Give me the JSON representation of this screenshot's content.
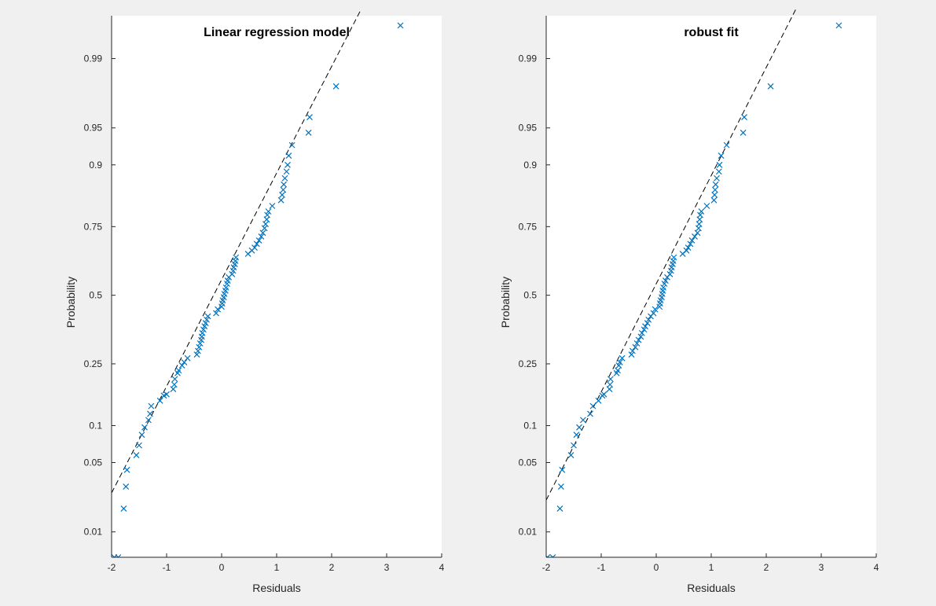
{
  "chart_data": [
    {
      "type": "scatter",
      "subtype": "normal-probability-plot",
      "title": "Linear regression model",
      "xlabel": "Residuals",
      "ylabel": "Probability",
      "xlim": [
        -2,
        4
      ],
      "xticks": [
        -2,
        -1,
        0,
        1,
        2,
        3,
        4
      ],
      "yticks": [
        0.01,
        0.05,
        0.1,
        0.25,
        0.5,
        0.75,
        0.9,
        0.95,
        0.99
      ],
      "grid": false,
      "marker_color": "#0072bd",
      "reference_line": {
        "style": "dashed",
        "color": "#000000",
        "points": [
          [
            -2,
            0.026
          ],
          [
            2.6,
            0.998
          ]
        ]
      },
      "points": [
        [
          -1.95,
          0.005
        ],
        [
          -1.88,
          0.005
        ],
        [
          -1.78,
          0.018
        ],
        [
          -1.74,
          0.03
        ],
        [
          -1.72,
          0.043
        ],
        [
          -1.55,
          0.058
        ],
        [
          -1.5,
          0.07
        ],
        [
          -1.45,
          0.085
        ],
        [
          -1.4,
          0.097
        ],
        [
          -1.33,
          0.11
        ],
        [
          -1.3,
          0.122
        ],
        [
          -1.28,
          0.138
        ],
        [
          -1.12,
          0.15
        ],
        [
          -1.05,
          0.162
        ],
        [
          -1.0,
          0.165
        ],
        [
          -0.88,
          0.178
        ],
        [
          -0.86,
          0.19
        ],
        [
          -0.85,
          0.205
        ],
        [
          -0.8,
          0.222
        ],
        [
          -0.78,
          0.23
        ],
        [
          -0.72,
          0.245
        ],
        [
          -0.68,
          0.255
        ],
        [
          -0.62,
          0.268
        ],
        [
          -0.45,
          0.28
        ],
        [
          -0.43,
          0.292
        ],
        [
          -0.41,
          0.305
        ],
        [
          -0.39,
          0.318
        ],
        [
          -0.37,
          0.33
        ],
        [
          -0.36,
          0.342
        ],
        [
          -0.35,
          0.355
        ],
        [
          -0.33,
          0.368
        ],
        [
          -0.31,
          0.38
        ],
        [
          -0.29,
          0.392
        ],
        [
          -0.27,
          0.405
        ],
        [
          -0.25,
          0.418
        ],
        [
          -0.1,
          0.43
        ],
        [
          -0.07,
          0.445
        ],
        [
          0.0,
          0.455
        ],
        [
          0.01,
          0.468
        ],
        [
          0.02,
          0.48
        ],
        [
          0.04,
          0.492
        ],
        [
          0.05,
          0.505
        ],
        [
          0.07,
          0.518
        ],
        [
          0.08,
          0.53
        ],
        [
          0.1,
          0.545
        ],
        [
          0.11,
          0.557
        ],
        [
          0.13,
          0.57
        ],
        [
          0.19,
          0.582
        ],
        [
          0.21,
          0.595
        ],
        [
          0.22,
          0.608
        ],
        [
          0.24,
          0.62
        ],
        [
          0.25,
          0.632
        ],
        [
          0.26,
          0.645
        ],
        [
          0.48,
          0.658
        ],
        [
          0.55,
          0.67
        ],
        [
          0.6,
          0.68
        ],
        [
          0.64,
          0.693
        ],
        [
          0.68,
          0.705
        ],
        [
          0.72,
          0.718
        ],
        [
          0.75,
          0.73
        ],
        [
          0.78,
          0.745
        ],
        [
          0.8,
          0.758
        ],
        [
          0.82,
          0.772
        ],
        [
          0.83,
          0.785
        ],
        [
          0.85,
          0.795
        ],
        [
          0.92,
          0.81
        ],
        [
          1.08,
          0.825
        ],
        [
          1.1,
          0.838
        ],
        [
          1.12,
          0.85
        ],
        [
          1.13,
          0.862
        ],
        [
          1.15,
          0.875
        ],
        [
          1.18,
          0.888
        ],
        [
          1.2,
          0.9
        ],
        [
          1.22,
          0.915
        ],
        [
          1.28,
          0.93
        ],
        [
          1.58,
          0.945
        ],
        [
          1.6,
          0.96
        ],
        [
          2.08,
          0.98
        ],
        [
          3.25,
          0.996
        ]
      ]
    },
    {
      "type": "scatter",
      "subtype": "normal-probability-plot",
      "title": "robust fit",
      "xlabel": "Residuals",
      "ylabel": "Probability",
      "xlim": [
        -2,
        4
      ],
      "xticks": [
        -2,
        -1,
        0,
        1,
        2,
        3,
        4
      ],
      "yticks": [
        0.01,
        0.05,
        0.1,
        0.25,
        0.5,
        0.75,
        0.9,
        0.95,
        0.99
      ],
      "grid": false,
      "marker_color": "#0072bd",
      "reference_line": {
        "style": "dashed",
        "color": "#000000",
        "points": [
          [
            -2,
            0.022
          ],
          [
            2.6,
            0.998
          ]
        ]
      },
      "points": [
        [
          -1.98,
          0.005
        ],
        [
          -1.88,
          0.005
        ],
        [
          -1.75,
          0.018
        ],
        [
          -1.73,
          0.03
        ],
        [
          -1.71,
          0.043
        ],
        [
          -1.55,
          0.058
        ],
        [
          -1.5,
          0.07
        ],
        [
          -1.45,
          0.085
        ],
        [
          -1.4,
          0.097
        ],
        [
          -1.33,
          0.11
        ],
        [
          -1.2,
          0.122
        ],
        [
          -1.15,
          0.138
        ],
        [
          -1.05,
          0.15
        ],
        [
          -0.98,
          0.162
        ],
        [
          -0.95,
          0.165
        ],
        [
          -0.85,
          0.178
        ],
        [
          -0.84,
          0.19
        ],
        [
          -0.83,
          0.205
        ],
        [
          -0.72,
          0.222
        ],
        [
          -0.7,
          0.23
        ],
        [
          -0.68,
          0.245
        ],
        [
          -0.66,
          0.255
        ],
        [
          -0.62,
          0.268
        ],
        [
          -0.45,
          0.28
        ],
        [
          -0.43,
          0.292
        ],
        [
          -0.38,
          0.305
        ],
        [
          -0.35,
          0.318
        ],
        [
          -0.32,
          0.33
        ],
        [
          -0.28,
          0.342
        ],
        [
          -0.26,
          0.355
        ],
        [
          -0.22,
          0.368
        ],
        [
          -0.2,
          0.38
        ],
        [
          -0.16,
          0.392
        ],
        [
          -0.14,
          0.405
        ],
        [
          -0.1,
          0.418
        ],
        [
          -0.05,
          0.43
        ],
        [
          -0.02,
          0.445
        ],
        [
          0.06,
          0.455
        ],
        [
          0.07,
          0.468
        ],
        [
          0.08,
          0.48
        ],
        [
          0.1,
          0.492
        ],
        [
          0.11,
          0.505
        ],
        [
          0.12,
          0.518
        ],
        [
          0.13,
          0.53
        ],
        [
          0.15,
          0.545
        ],
        [
          0.17,
          0.557
        ],
        [
          0.2,
          0.57
        ],
        [
          0.25,
          0.582
        ],
        [
          0.27,
          0.595
        ],
        [
          0.28,
          0.608
        ],
        [
          0.3,
          0.62
        ],
        [
          0.31,
          0.632
        ],
        [
          0.32,
          0.645
        ],
        [
          0.48,
          0.658
        ],
        [
          0.55,
          0.67
        ],
        [
          0.58,
          0.68
        ],
        [
          0.62,
          0.693
        ],
        [
          0.65,
          0.705
        ],
        [
          0.7,
          0.718
        ],
        [
          0.75,
          0.73
        ],
        [
          0.77,
          0.745
        ],
        [
          0.78,
          0.758
        ],
        [
          0.79,
          0.772
        ],
        [
          0.8,
          0.785
        ],
        [
          0.82,
          0.795
        ],
        [
          0.92,
          0.81
        ],
        [
          1.05,
          0.825
        ],
        [
          1.06,
          0.838
        ],
        [
          1.07,
          0.85
        ],
        [
          1.08,
          0.862
        ],
        [
          1.1,
          0.875
        ],
        [
          1.14,
          0.888
        ],
        [
          1.15,
          0.9
        ],
        [
          1.18,
          0.915
        ],
        [
          1.28,
          0.93
        ],
        [
          1.58,
          0.945
        ],
        [
          1.6,
          0.96
        ],
        [
          2.08,
          0.98
        ],
        [
          3.32,
          0.996
        ]
      ]
    }
  ]
}
